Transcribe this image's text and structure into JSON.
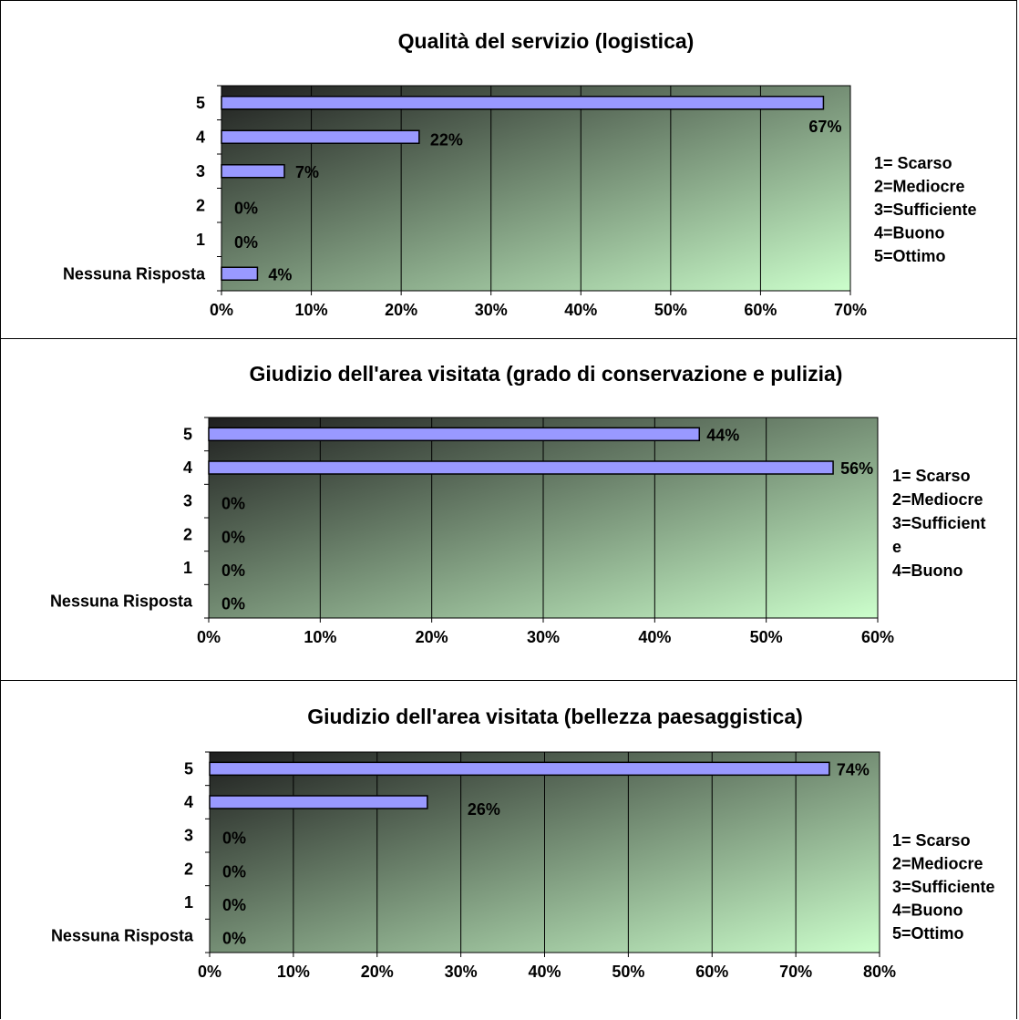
{
  "chart_data": [
    {
      "type": "bar",
      "title": "Qualità del servizio (logistica)",
      "categories": [
        "5",
        "4",
        "3",
        "2",
        "1",
        "Nessuna Risposta"
      ],
      "values": [
        67,
        22,
        7,
        0,
        0,
        4
      ],
      "data_labels": [
        "67%",
        "22%",
        "7%",
        "0%",
        "0%",
        "4%"
      ],
      "xlim": [
        0,
        70
      ],
      "x_ticks": [
        "0%",
        "10%",
        "20%",
        "30%",
        "40%",
        "50%",
        "60%",
        "70%"
      ],
      "grid": "vertical",
      "legend_note": [
        "1= Scarso",
        "2=Mediocre",
        "3=Sufficiente",
        "4=Buono",
        "5=Ottimo"
      ]
    },
    {
      "type": "bar",
      "title": "Giudizio dell'area visitata (grado di conservazione e pulizia)",
      "categories": [
        "5",
        "4",
        "3",
        "2",
        "1",
        "Nessuna Risposta"
      ],
      "values": [
        44,
        56,
        0,
        0,
        0,
        0
      ],
      "data_labels": [
        "44%",
        "56%",
        "0%",
        "0%",
        "0%",
        "0%"
      ],
      "xlim": [
        0,
        60
      ],
      "x_ticks": [
        "0%",
        "10%",
        "20%",
        "30%",
        "40%",
        "50%",
        "60%"
      ],
      "grid": "vertical",
      "legend_note": [
        "1= Scarso",
        "2=Mediocre",
        "3=Sufficient",
        "e",
        "4=Buono"
      ]
    },
    {
      "type": "bar",
      "title": "Giudizio dell'area visitata (bellezza paesaggistica)",
      "categories": [
        "5",
        "4",
        "3",
        "2",
        "1",
        "Nessuna Risposta"
      ],
      "values": [
        74,
        26,
        0,
        0,
        0,
        0
      ],
      "data_labels": [
        "74%",
        "26%",
        "0%",
        "0%",
        "0%",
        "0%"
      ],
      "xlim": [
        0,
        80
      ],
      "x_ticks": [
        "0%",
        "10%",
        "20%",
        "30%",
        "40%",
        "50%",
        "60%",
        "70%",
        "80%"
      ],
      "grid": "vertical",
      "legend_note": [
        "1= Scarso",
        "2=Mediocre",
        "3=Sufficiente",
        "4=Buono",
        "5=Ottimo"
      ]
    }
  ],
  "colors": {
    "bar_fill": "#9999ff",
    "bar_stroke": "#000000",
    "plot_gradient_dark": "#1e1e1e",
    "plot_gradient_light": "#ccffcc"
  }
}
